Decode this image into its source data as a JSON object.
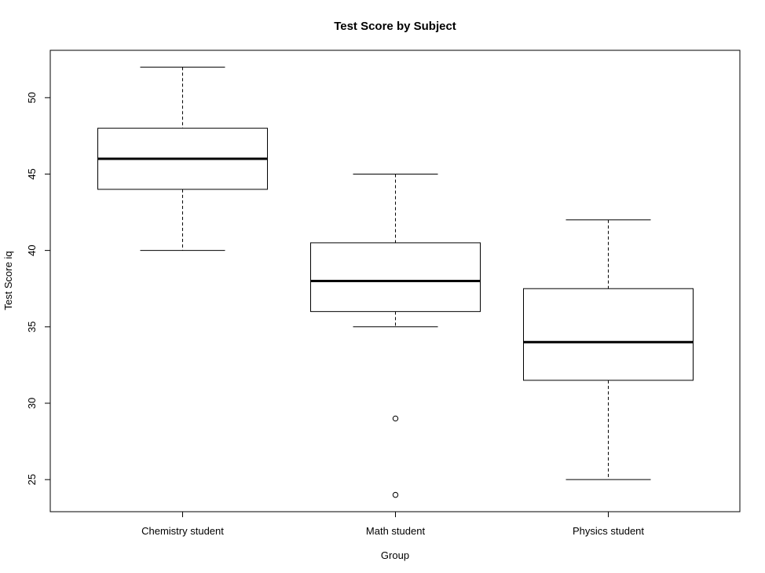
{
  "chart_data": {
    "type": "boxplot",
    "title": "Test Score by Subject",
    "xlabel": "Group",
    "ylabel": "Test Score iq",
    "categories": [
      "Chemistry student",
      "Math student",
      "Physics student"
    ],
    "boxes": [
      {
        "category": "Chemistry student",
        "whisker_low": 40,
        "q1": 44,
        "median": 46,
        "q3": 48,
        "whisker_high": 52,
        "outliers": []
      },
      {
        "category": "Math student",
        "whisker_low": 35,
        "q1": 36,
        "median": 38,
        "q3": 40.5,
        "whisker_high": 45,
        "outliers": [
          29,
          24
        ]
      },
      {
        "category": "Physics student",
        "whisker_low": 25,
        "q1": 31.5,
        "median": 34,
        "q3": 37.5,
        "whisker_high": 42,
        "outliers": []
      }
    ],
    "yticks": [
      25,
      30,
      35,
      40,
      45,
      50
    ],
    "ylim": [
      22.9,
      53.1
    ],
    "grid": false,
    "colors": {
      "box": "#ffffff",
      "stroke": "#000000"
    }
  }
}
